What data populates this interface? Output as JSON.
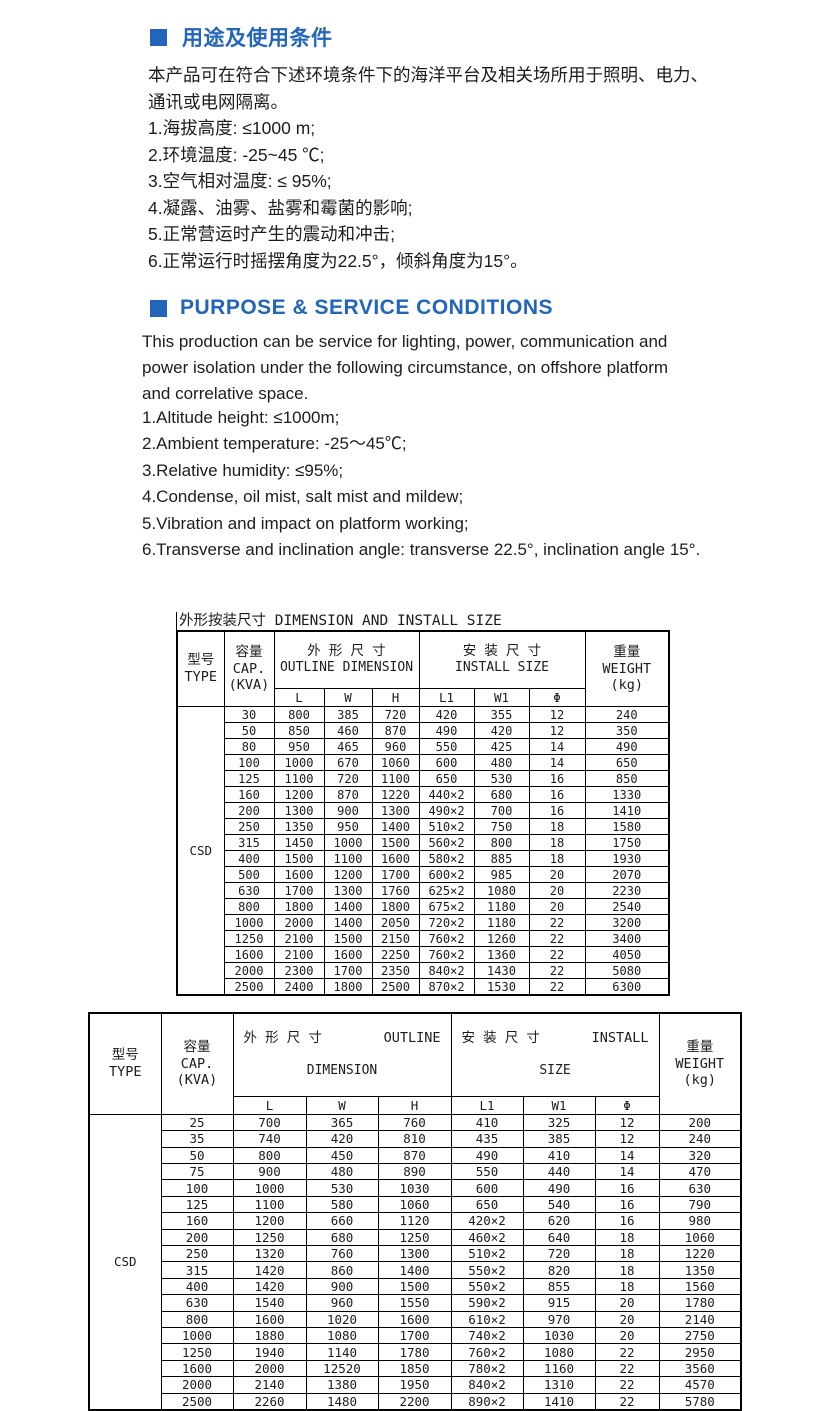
{
  "accent_color": "#2265bb",
  "section_cn": {
    "title": "用途及使用条件",
    "paragraph": "本产品可在符合下述环境条件下的海洋平台及相关场所用于照明、电力、通讯或电网隔离。",
    "items": [
      "1.海拔高度: ≤1000 m;",
      "2.环境温度: -25~45 ℃;",
      "3.空气相对温度: ≤ 95%;",
      "4.凝露、油雾、盐雾和霉菌的影响;",
      "5.正常营运时产生的震动和冲击;",
      "6.正常运行时摇摆角度为22.5°，倾斜角度为15°。"
    ]
  },
  "section_en": {
    "title": "PURPOSE & SERVICE CONDITIONS",
    "paragraph": "This production can be service for lighting, power, communication and power isolation under the following circumstance, on offshore platform and correlative space.",
    "items": [
      "1.Altitude height: ≤1000m;",
      "2.Ambient temperature: -25～45℃;",
      "3.Relative humidity: ≤95%;",
      "4.Condense, oil mist, salt mist and mildew;",
      "5.Vibration and impact on platform working;",
      "6.Transverse and inclination angle: transverse 22.5°, inclination angle 15°."
    ]
  },
  "table1": {
    "title": "外形按装尺寸 DIMENSION AND INSTALL SIZE",
    "header": {
      "type": "型号\nTYPE",
      "cap": "容量\nCAP.\n(KVA)",
      "outline_cn": "外 形 尺 寸",
      "outline_en": "OUTLINE DIMENSION",
      "install_cn": "安 装 尺 寸",
      "install_en": "INSTALL SIZE",
      "weight": "重量\nWEIGHT\n(kg)",
      "sub": [
        "L",
        "W",
        "H",
        "L1",
        "W1",
        "Φ"
      ]
    },
    "type_value": "CSD",
    "rows": [
      [
        "30",
        "800",
        "385",
        "720",
        "420",
        "355",
        "12",
        "240"
      ],
      [
        "50",
        "850",
        "460",
        "870",
        "490",
        "420",
        "12",
        "350"
      ],
      [
        "80",
        "950",
        "465",
        "960",
        "550",
        "425",
        "14",
        "490"
      ],
      [
        "100",
        "1000",
        "670",
        "1060",
        "600",
        "480",
        "14",
        "650"
      ],
      [
        "125",
        "1100",
        "720",
        "1100",
        "650",
        "530",
        "16",
        "850"
      ],
      [
        "160",
        "1200",
        "870",
        "1220",
        "440×2",
        "680",
        "16",
        "1330"
      ],
      [
        "200",
        "1300",
        "900",
        "1300",
        "490×2",
        "700",
        "16",
        "1410"
      ],
      [
        "250",
        "1350",
        "950",
        "1400",
        "510×2",
        "750",
        "18",
        "1580"
      ],
      [
        "315",
        "1450",
        "1000",
        "1500",
        "560×2",
        "800",
        "18",
        "1750"
      ],
      [
        "400",
        "1500",
        "1100",
        "1600",
        "580×2",
        "885",
        "18",
        "1930"
      ],
      [
        "500",
        "1600",
        "1200",
        "1700",
        "600×2",
        "985",
        "20",
        "2070"
      ],
      [
        "630",
        "1700",
        "1300",
        "1760",
        "625×2",
        "1080",
        "20",
        "2230"
      ],
      [
        "800",
        "1800",
        "1400",
        "1800",
        "675×2",
        "1180",
        "20",
        "2540"
      ],
      [
        "1000",
        "2000",
        "1400",
        "2050",
        "720×2",
        "1180",
        "22",
        "3200"
      ],
      [
        "1250",
        "2100",
        "1500",
        "2150",
        "760×2",
        "1260",
        "22",
        "3400"
      ],
      [
        "1600",
        "2100",
        "1600",
        "2250",
        "760×2",
        "1360",
        "22",
        "4050"
      ],
      [
        "2000",
        "2300",
        "1700",
        "2350",
        "840×2",
        "1430",
        "22",
        "5080"
      ],
      [
        "2500",
        "2400",
        "1800",
        "2500",
        "870×2",
        "1530",
        "22",
        "6300"
      ]
    ]
  },
  "table2": {
    "header": {
      "type": "型号\nTYPE",
      "cap": "容量\nCAP.\n(KVA)",
      "outline_cn": "外 形 尺 寸",
      "outline_en1": "OUTLINE",
      "outline_en2": "DIMENSION",
      "install_cn": "安 装 尺 寸",
      "install_en1": "INSTALL",
      "install_en2": "SIZE",
      "weight": "重量\nWEIGHT\n(kg)",
      "sub": [
        "L",
        "W",
        "H",
        "L1",
        "W1",
        "Φ"
      ]
    },
    "type_value": "CSD",
    "rows": [
      [
        "25",
        "700",
        "365",
        "760",
        "410",
        "325",
        "12",
        "200"
      ],
      [
        "35",
        "740",
        "420",
        "810",
        "435",
        "385",
        "12",
        "240"
      ],
      [
        "50",
        "800",
        "450",
        "870",
        "490",
        "410",
        "14",
        "320"
      ],
      [
        "75",
        "900",
        "480",
        "890",
        "550",
        "440",
        "14",
        "470"
      ],
      [
        "100",
        "1000",
        "530",
        "1030",
        "600",
        "490",
        "16",
        "630"
      ],
      [
        "125",
        "1100",
        "580",
        "1060",
        "650",
        "540",
        "16",
        "790"
      ],
      [
        "160",
        "1200",
        "660",
        "1120",
        "420×2",
        "620",
        "16",
        "980"
      ],
      [
        "200",
        "1250",
        "680",
        "1250",
        "460×2",
        "640",
        "18",
        "1060"
      ],
      [
        "250",
        "1320",
        "760",
        "1300",
        "510×2",
        "720",
        "18",
        "1220"
      ],
      [
        "315",
        "1420",
        "860",
        "1400",
        "550×2",
        "820",
        "18",
        "1350"
      ],
      [
        "400",
        "1420",
        "900",
        "1500",
        "550×2",
        "855",
        "18",
        "1560"
      ],
      [
        "630",
        "1540",
        "960",
        "1550",
        "590×2",
        "915",
        "20",
        "1780"
      ],
      [
        "800",
        "1600",
        "1020",
        "1600",
        "610×2",
        "970",
        "20",
        "2140"
      ],
      [
        "1000",
        "1880",
        "1080",
        "1700",
        "740×2",
        "1030",
        "20",
        "2750"
      ],
      [
        "1250",
        "1940",
        "1140",
        "1780",
        "760×2",
        "1080",
        "22",
        "2950"
      ],
      [
        "1600",
        "2000",
        "12520",
        "1850",
        "780×2",
        "1160",
        "22",
        "3560"
      ],
      [
        "2000",
        "2140",
        "1380",
        "1950",
        "840×2",
        "1310",
        "22",
        "4570"
      ],
      [
        "2500",
        "2260",
        "1480",
        "2200",
        "890×2",
        "1410",
        "22",
        "5780"
      ]
    ]
  }
}
